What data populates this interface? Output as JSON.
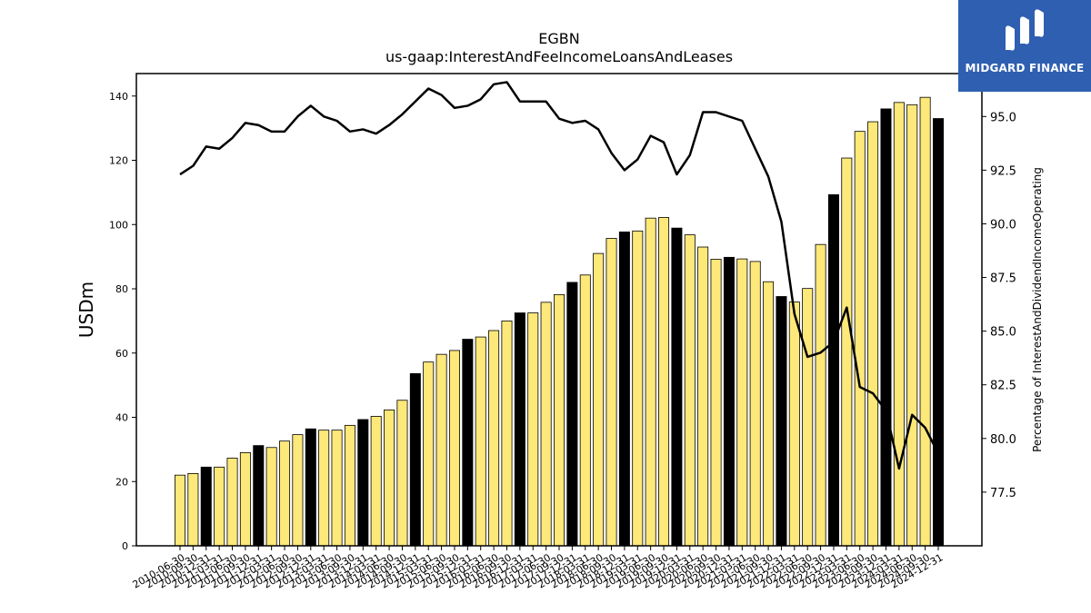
{
  "brand": {
    "name": "MIDGARD FINANCE",
    "bg_color": "#2f5fb0",
    "icon": "midgard-logo-icon"
  },
  "chart_data": {
    "type": "bar",
    "title": "EGBN",
    "subtitle": "us-gaap:InterestAndFeeIncomeLoansAndLeases",
    "ylabel": "USDm",
    "y2label": "Percentage of InterestAndDividendIncomeOperating",
    "ylim": [
      0,
      147
    ],
    "y2lim": [
      75,
      97
    ],
    "yticks": [
      0,
      20,
      40,
      60,
      80,
      100,
      120,
      140
    ],
    "y2ticks": [
      "77.5",
      "80.0",
      "82.5",
      "85.0",
      "87.5",
      "90.0",
      "92.5",
      "95.0"
    ],
    "grid": false,
    "colors": {
      "quarter_bar": "#fde87a",
      "annual_bar": "#000000",
      "line": "#000000"
    },
    "categories": [
      "2010-06-30",
      "2010-09-30",
      "2010-12-31",
      "2011-03-31",
      "2011-06-30",
      "2011-09-30",
      "2011-12-31",
      "2012-03-31",
      "2012-06-30",
      "2012-09-30",
      "2012-12-31",
      "2013-03-31",
      "2013-06-30",
      "2013-09-30",
      "2013-12-31",
      "2014-03-31",
      "2014-06-30",
      "2014-09-30",
      "2014-12-31",
      "2015-03-31",
      "2015-06-30",
      "2015-09-30",
      "2015-12-31",
      "2016-03-31",
      "2016-06-30",
      "2016-09-30",
      "2016-12-31",
      "2017-03-31",
      "2017-06-30",
      "2017-09-30",
      "2017-12-31",
      "2018-03-31",
      "2018-06-30",
      "2018-09-30",
      "2018-12-31",
      "2019-03-31",
      "2019-06-30",
      "2019-09-30",
      "2019-12-31",
      "2020-03-31",
      "2020-06-30",
      "2020-09-30",
      "2020-12-31",
      "2021-03-31",
      "2021-06-30",
      "2021-09-30",
      "2021-12-31",
      "2022-03-31",
      "2022-06-30",
      "2022-09-30",
      "2022-12-31",
      "2023-03-31",
      "2023-06-30",
      "2023-09-30",
      "2023-12-31",
      "2024-03-31",
      "2024-06-30",
      "2024-09-30",
      "2024-12-31"
    ],
    "series": [
      {
        "values": [
          22.0,
          22.5,
          24.5,
          24.5,
          27.3,
          29.0,
          31.2,
          30.6,
          32.6,
          34.6,
          36.4,
          36.0,
          36.0,
          37.5,
          39.3,
          40.3,
          42.3,
          45.3,
          53.6,
          57.2,
          59.6,
          60.8,
          64.3,
          65.0,
          67.0,
          70.0,
          72.5,
          72.5,
          75.8,
          78.2,
          82.0,
          84.3,
          91.0,
          95.7,
          97.7,
          98.0,
          102.0,
          102.2,
          98.9,
          96.8,
          93.0,
          89.2,
          89.8,
          89.3,
          88.5,
          82.2,
          77.6,
          75.9,
          80.1,
          93.8,
          109.3,
          120.7,
          129.0,
          132.0,
          136.0,
          138.0,
          137.3,
          139.6,
          133.0
        ],
        "annual_flags": [
          0,
          0,
          1,
          0,
          0,
          0,
          1,
          0,
          0,
          0,
          1,
          0,
          0,
          0,
          1,
          0,
          0,
          0,
          1,
          0,
          0,
          0,
          1,
          0,
          0,
          0,
          1,
          0,
          0,
          0,
          1,
          0,
          0,
          0,
          1,
          0,
          0,
          0,
          1,
          0,
          0,
          0,
          1,
          0,
          0,
          0,
          1,
          0,
          0,
          0,
          1,
          0,
          0,
          0,
          1,
          0,
          0,
          0,
          1
        ]
      },
      {
        "axis": "right",
        "values": [
          92.3,
          92.7,
          93.6,
          93.5,
          94.0,
          94.7,
          94.6,
          94.3,
          94.3,
          95.0,
          95.5,
          95.0,
          94.8,
          94.3,
          94.4,
          94.2,
          94.6,
          95.1,
          95.7,
          96.3,
          96.0,
          95.4,
          95.5,
          95.8,
          96.5,
          96.6,
          95.7,
          95.7,
          95.7,
          94.9,
          94.7,
          94.8,
          94.4,
          93.3,
          92.5,
          93.0,
          94.1,
          93.8,
          92.3,
          93.2,
          95.2,
          95.2,
          95.0,
          94.8,
          93.5,
          92.2,
          90.1,
          85.8,
          83.8,
          84.0,
          84.5,
          86.1,
          82.4,
          82.1,
          81.3,
          78.6,
          81.1,
          80.5,
          79.3
        ]
      }
    ]
  }
}
